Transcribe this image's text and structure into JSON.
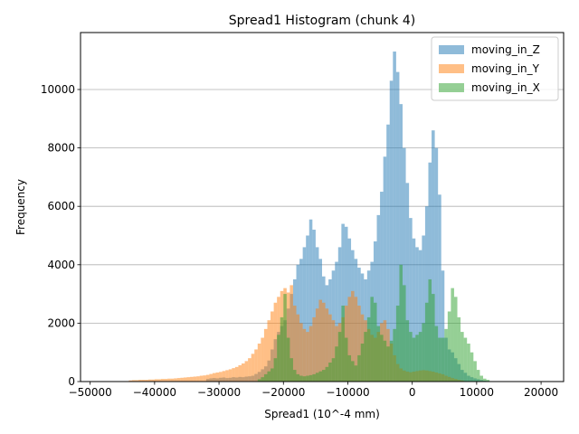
{
  "chart_data": {
    "type": "histogram",
    "title": "Spread1 Histogram (chunk 4)",
    "xlabel": "Spread1 (10^-4 mm)",
    "ylabel": "Frequency",
    "xlim": [
      -51500,
      23500
    ],
    "ylim": [
      0,
      11950
    ],
    "xticks": [
      -50000,
      -40000,
      -30000,
      -20000,
      -10000,
      0,
      10000,
      20000
    ],
    "xtick_labels": [
      "−50000",
      "−40000",
      "−30000",
      "−20000",
      "−10000",
      "0",
      "10000",
      "20000"
    ],
    "yticks": [
      0,
      2000,
      4000,
      6000,
      8000,
      10000
    ],
    "ytick_labels": [
      "0",
      "2000",
      "4000",
      "6000",
      "8000",
      "10000"
    ],
    "grid": "y",
    "legend_position": "top-right",
    "bin_width": 500,
    "series": [
      {
        "name": "moving_in_Z",
        "color": "#1f77b4",
        "alpha": 0.5,
        "x_start": -32000,
        "counts": [
          90,
          110,
          120,
          110,
          130,
          140,
          120,
          130,
          150,
          140,
          160,
          150,
          170,
          180,
          200,
          260,
          330,
          420,
          520,
          720,
          1100,
          1450,
          1700,
          1900,
          2100,
          2500,
          3000,
          3500,
          4000,
          4200,
          4600,
          5000,
          5550,
          5200,
          4600,
          4200,
          3600,
          3300,
          3500,
          3800,
          4100,
          4600,
          5400,
          5300,
          4900,
          4500,
          4200,
          3900,
          3700,
          3500,
          3800,
          4100,
          4800,
          5700,
          6500,
          7700,
          8800,
          10300,
          11300,
          10600,
          9500,
          8000,
          6800,
          5600,
          4900,
          4600,
          4500,
          5000,
          6000,
          7500,
          8600,
          8000,
          6400,
          3800,
          1500,
          1100,
          1000,
          800,
          600,
          400,
          300,
          200,
          150,
          110,
          80,
          50,
          30,
          20
        ]
      },
      {
        "name": "moving_in_Y",
        "color": "#ff7f0e",
        "alpha": 0.5,
        "x_start": -44000,
        "counts": [
          40,
          50,
          50,
          60,
          60,
          60,
          70,
          70,
          80,
          80,
          90,
          90,
          100,
          100,
          110,
          120,
          130,
          140,
          150,
          160,
          170,
          180,
          200,
          210,
          230,
          260,
          290,
          310,
          330,
          360,
          390,
          420,
          460,
          500,
          560,
          620,
          700,
          800,
          950,
          1100,
          1300,
          1500,
          1800,
          2100,
          2400,
          2700,
          2900,
          3100,
          3200,
          3050,
          3300,
          2600,
          2300,
          2000,
          1800,
          1700,
          1900,
          2200,
          2500,
          2800,
          2700,
          2500,
          2300,
          2100,
          1900,
          2000,
          2200,
          2600,
          2900,
          3100,
          2900,
          2600,
          2300,
          2100,
          1800,
          1600,
          1500,
          1700,
          2000,
          2100,
          1800,
          1300,
          900,
          600,
          450,
          380,
          340,
          320,
          340,
          360,
          380,
          390,
          380,
          360,
          340,
          310,
          280,
          250,
          200,
          160,
          120,
          90,
          60,
          40
        ]
      },
      {
        "name": "moving_in_X",
        "color": "#2ca02c",
        "alpha": 0.5,
        "x_start": -24000,
        "counts": [
          80,
          150,
          250,
          350,
          450,
          800,
          1600,
          2200,
          3000,
          1500,
          800,
          400,
          250,
          200,
          180,
          200,
          220,
          250,
          300,
          350,
          400,
          500,
          650,
          800,
          1200,
          1700,
          2600,
          1500,
          900,
          700,
          550,
          900,
          1300,
          1700,
          2200,
          2900,
          2700,
          1900,
          1600,
          1400,
          1200,
          1400,
          1800,
          2600,
          4000,
          3300,
          2100,
          1700,
          1500,
          1600,
          1700,
          2000,
          2700,
          3500,
          3000,
          1900,
          1500,
          1500,
          1800,
          2400,
          3200,
          2900,
          2200,
          1700,
          1500,
          1300,
          1000,
          700,
          400,
          200,
          100,
          60
        ]
      }
    ]
  }
}
